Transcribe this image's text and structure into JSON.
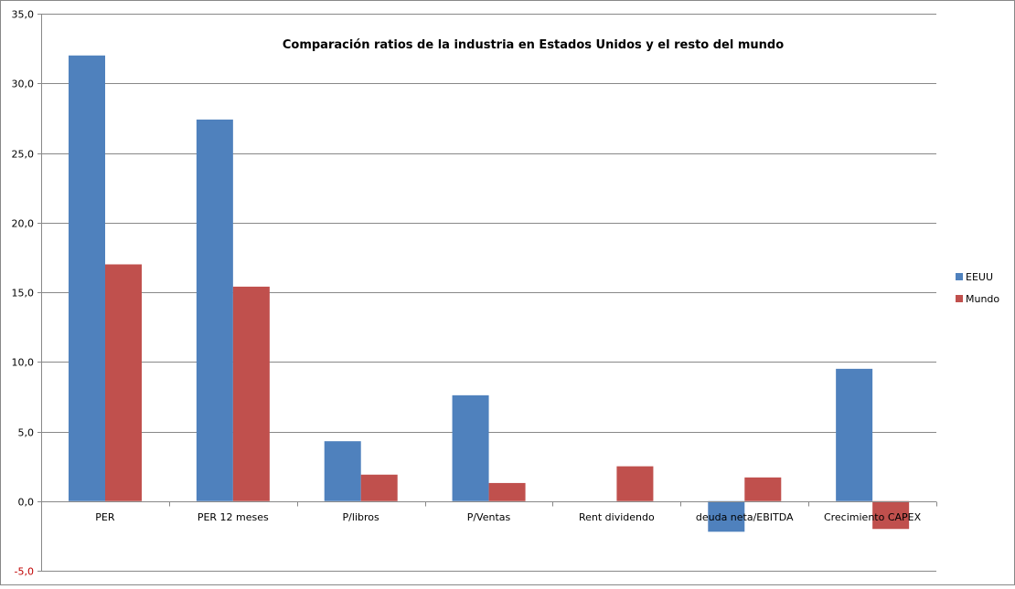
{
  "chart_data": {
    "type": "bar",
    "title": "Comparación ratios de la industria en Estados Unidos y el resto del mundo",
    "categories": [
      "PER",
      "PER 12 meses",
      "P/libros",
      "P/Ventas",
      "Rent dividendo",
      "deuda neta/EBITDA",
      "Crecimiento CAPEX"
    ],
    "series": [
      {
        "name": "EEUU",
        "color": "#4f81bd",
        "values": [
          32.0,
          27.4,
          4.3,
          7.6,
          0,
          -2.2,
          9.5
        ]
      },
      {
        "name": "Mundo",
        "color": "#c0504d",
        "values": [
          17.0,
          15.4,
          1.9,
          1.3,
          2.5,
          1.7,
          -2.0
        ]
      }
    ],
    "ylim": [
      -5,
      35
    ],
    "yticks": [
      "-5,0",
      "0,0",
      "5,0",
      "10,0",
      "15,0",
      "20,0",
      "25,0",
      "30,0",
      "35,0"
    ],
    "ytick_values": [
      -5,
      0,
      5,
      10,
      15,
      20,
      25,
      30,
      35
    ],
    "negative_tick_color": "#c00000",
    "grid": true,
    "legend": "right"
  }
}
